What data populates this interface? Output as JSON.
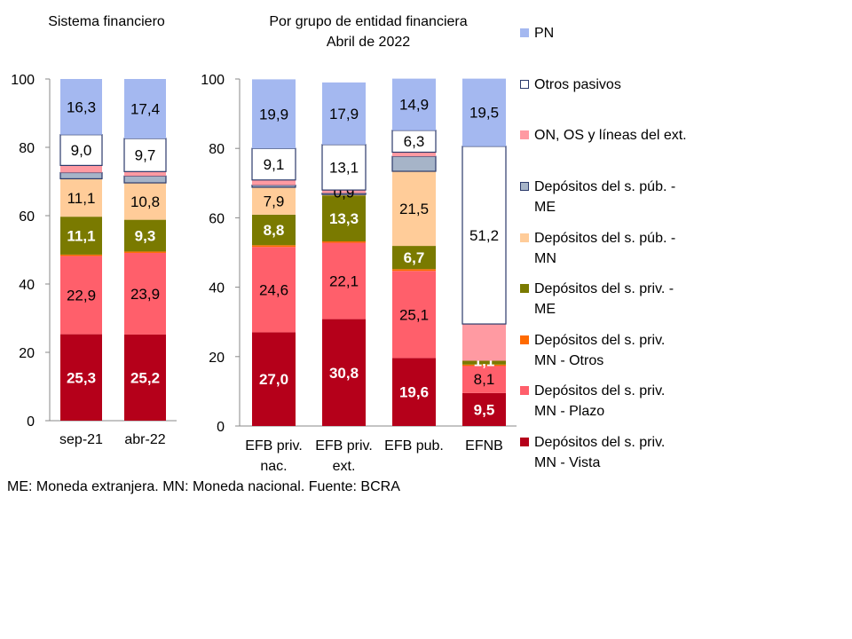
{
  "chart_data": [
    {
      "type": "bar",
      "stacked": true,
      "title": "Sistema financiero",
      "categories": [
        "sep-21",
        "abr-22"
      ],
      "ylim": [
        0,
        100
      ],
      "yticks": [
        0,
        20,
        40,
        60,
        80,
        100
      ],
      "grid": false,
      "series": [
        {
          "name": "Depósitos del s. priv. MN - Vista",
          "values": [
            25.3,
            25.2
          ],
          "labels": [
            "25,3",
            "25,2"
          ]
        },
        {
          "name": "Depósitos del s. priv. MN - Plazo",
          "values": [
            22.9,
            23.9
          ],
          "labels": [
            "22,9",
            "23,9"
          ]
        },
        {
          "name": "Depósitos del s. priv. MN - Otros",
          "values": [
            0.4,
            0.4
          ],
          "labels": [
            null,
            null
          ]
        },
        {
          "name": "Depósitos del s. priv. - ME",
          "values": [
            11.1,
            9.3
          ],
          "labels": [
            "11,1",
            "9,3"
          ]
        },
        {
          "name": "Depósitos del s. púb. - MN",
          "values": [
            11.1,
            10.8
          ],
          "labels": [
            "11,1",
            "10,8"
          ]
        },
        {
          "name": "Depósitos del s. púb. - ME",
          "values": [
            1.8,
            2.0
          ],
          "labels": [
            null,
            null
          ]
        },
        {
          "name": "ON, OS y líneas del ext.",
          "values": [
            2.1,
            1.3
          ],
          "labels": [
            null,
            null
          ]
        },
        {
          "name": "Otros pasivos",
          "values": [
            9.0,
            9.7
          ],
          "labels": [
            "9,0",
            "9,7"
          ]
        },
        {
          "name": "PN",
          "values": [
            16.3,
            17.4
          ],
          "labels": [
            "16,3",
            "17,4"
          ]
        }
      ]
    },
    {
      "type": "bar",
      "stacked": true,
      "title": "Por grupo de entidad financiera",
      "subtitle": "Abril de 2022",
      "categories": [
        [
          "EFB priv.",
          "nac."
        ],
        [
          "EFB priv.",
          "ext."
        ],
        [
          "EFB pub."
        ],
        [
          "EFNB"
        ]
      ],
      "ylim": [
        0,
        100
      ],
      "yticks": [
        0,
        20,
        40,
        60,
        80,
        100
      ],
      "grid": false,
      "series": [
        {
          "name": "Depósitos del s. priv. MN - Vista",
          "values": [
            27.0,
            30.8,
            19.6,
            9.5
          ],
          "labels": [
            "27,0",
            "30,8",
            "19,6",
            "9,5"
          ]
        },
        {
          "name": "Depósitos del s. priv. MN - Plazo",
          "values": [
            24.6,
            22.1,
            25.1,
            8.1
          ],
          "labels": [
            "24,6",
            "22,1",
            "25,1",
            "8,1"
          ]
        },
        {
          "name": "Depósitos del s. priv. MN - Otros",
          "values": [
            0.5,
            0.3,
            0.5,
            0.1
          ],
          "labels": [
            null,
            null,
            null,
            null
          ]
        },
        {
          "name": "Depósitos del s. priv. - ME",
          "values": [
            8.8,
            13.3,
            6.7,
            1.1
          ],
          "labels": [
            "8,8",
            "13,3",
            "6,7",
            "1,1"
          ]
        },
        {
          "name": "Depósitos del s. púb. - MN",
          "values": [
            7.9,
            0.3,
            21.5,
            0
          ],
          "labels": [
            "7,9",
            null,
            "21,5",
            null
          ]
        },
        {
          "name": "Depósitos del s. púb. - ME",
          "values": [
            0.6,
            0.3,
            4.3,
            0
          ],
          "labels": [
            null,
            null,
            null,
            null
          ]
        },
        {
          "name": "ON, OS y líneas del ext.",
          "values": [
            1.5,
            0.9,
            1.2,
            10.6
          ],
          "labels": [
            null,
            "0,9",
            null,
            null
          ]
        },
        {
          "name": "Otros pasivos",
          "values": [
            9.1,
            13.1,
            6.3,
            51.2
          ],
          "labels": [
            "9,1",
            "13,1",
            "6,3",
            "51,2"
          ]
        },
        {
          "name": "PN",
          "values": [
            19.9,
            17.9,
            14.9,
            19.5
          ],
          "labels": [
            "19,9",
            "17,9",
            "14,9",
            "19,5"
          ]
        }
      ]
    }
  ],
  "colors": [
    "#b5001a",
    "#ff5f6b",
    "#ff6a00",
    "#7a7a00",
    "#ffcc99",
    "#a6b4c8",
    "#ff9aa2",
    "#ffffff",
    "#a4b8f0"
  ],
  "label_colors": [
    "#ffffff",
    "#000000",
    "#000000",
    "#ffffff",
    "#000000",
    "#000000",
    "#000000",
    "#000000",
    "#000000"
  ],
  "legend": [
    {
      "l1": "PN",
      "l2": ""
    },
    {
      "l1": "Otros pasivos",
      "l2": ""
    },
    {
      "l1": "ON, OS y líneas del ext.",
      "l2": ""
    },
    {
      "l1": "Depósitos del s. púb. -",
      "l2": "ME"
    },
    {
      "l1": "Depósitos del s. púb. -",
      "l2": "MN"
    },
    {
      "l1": "Depósitos del s. priv. -",
      "l2": "ME"
    },
    {
      "l1": "Depósitos del s. priv.",
      "l2": "MN - Otros"
    },
    {
      "l1": "Depósitos del s. priv.",
      "l2": "MN - Plazo"
    },
    {
      "l1": "Depósitos del s. priv.",
      "l2": "MN - Vista"
    }
  ],
  "footnote": "ME: Moneda extranjera. MN: Moneda nacional. Fuente: BCRA"
}
